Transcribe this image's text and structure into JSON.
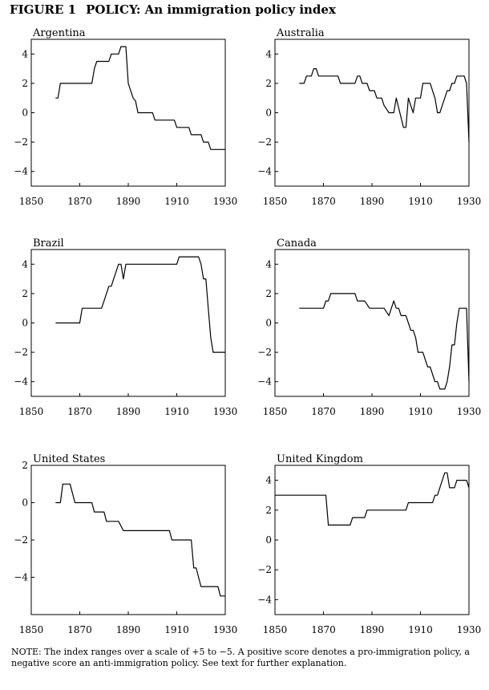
{
  "figure": {
    "number": "FIGURE 1",
    "title": "POLICY: An immigration policy index"
  },
  "note": "NOTE: The index ranges over a scale of +5 to −5. A positive score denotes a pro-immigration policy, a negative score an anti-immigration policy. See text for further explanation.",
  "chart_data": [
    {
      "type": "line",
      "title": "Argentina",
      "xlim": [
        1850,
        1930
      ],
      "ylim": [
        -5,
        5
      ],
      "xticks": [
        1850,
        1870,
        1890,
        1910,
        1930
      ],
      "yticks": [
        4,
        2,
        0,
        -2,
        -4
      ],
      "x": [
        1860,
        1861,
        1862,
        1875,
        1876,
        1877,
        1882,
        1883,
        1886,
        1887,
        1889,
        1890,
        1892,
        1893,
        1894,
        1900,
        1901,
        1909,
        1910,
        1915,
        1916,
        1920,
        1921,
        1923,
        1924,
        1930
      ],
      "y": [
        1,
        1,
        2,
        2,
        3,
        3.5,
        3.5,
        4,
        4,
        4.5,
        4.5,
        2,
        1,
        0.8,
        0,
        0,
        -0.5,
        -0.5,
        -1,
        -1,
        -1.5,
        -1.5,
        -2,
        -2,
        -2.5,
        -2.5
      ]
    },
    {
      "type": "line",
      "title": "Australia",
      "xlim": [
        1850,
        1930
      ],
      "ylim": [
        -5,
        5
      ],
      "xticks": [
        1850,
        1870,
        1890,
        1910,
        1930
      ],
      "yticks": [
        4,
        2,
        0,
        -2,
        -4
      ],
      "x": [
        1860,
        1862,
        1863,
        1865,
        1866,
        1867,
        1868,
        1876,
        1877,
        1883,
        1884,
        1885,
        1886,
        1888,
        1889,
        1891,
        1892,
        1894,
        1895,
        1897,
        1898,
        1899,
        1900,
        1903,
        1904,
        1905,
        1906,
        1907,
        1908,
        1910,
        1911,
        1913,
        1914,
        1916,
        1917,
        1918,
        1919,
        1920,
        1921,
        1922,
        1923,
        1924,
        1925,
        1928,
        1929,
        1930
      ],
      "y": [
        2,
        2,
        2.5,
        2.5,
        3,
        3,
        2.5,
        2.5,
        2,
        2,
        2.5,
        2.5,
        2,
        2,
        1.5,
        1.5,
        1,
        1,
        0.5,
        0,
        0,
        0,
        1,
        -1,
        -1,
        1,
        0.5,
        0,
        1,
        1,
        2,
        2,
        2,
        1,
        0,
        0,
        0.5,
        1,
        1.5,
        1.5,
        2,
        2,
        2.5,
        2.5,
        2,
        -2
      ]
    },
    {
      "type": "line",
      "title": "Brazil",
      "xlim": [
        1850,
        1930
      ],
      "ylim": [
        -5,
        5
      ],
      "xticks": [
        1850,
        1870,
        1890,
        1910,
        1930
      ],
      "yticks": [
        4,
        2,
        0,
        -2,
        -4
      ],
      "x": [
        1860,
        1870,
        1871,
        1879,
        1880,
        1881,
        1882,
        1883,
        1884,
        1885,
        1886,
        1887,
        1888,
        1889,
        1890,
        1910,
        1911,
        1919,
        1920,
        1921,
        1922,
        1923,
        1924,
        1925,
        1926,
        1930
      ],
      "y": [
        0,
        0,
        1,
        1,
        1.5,
        2,
        2.5,
        2.5,
        3,
        3.5,
        4,
        4,
        3,
        4,
        4,
        4,
        4.5,
        4.5,
        4,
        3,
        3,
        1,
        -1,
        -2,
        -2,
        -2
      ]
    },
    {
      "type": "line",
      "title": "Canada",
      "xlim": [
        1850,
        1930
      ],
      "ylim": [
        -5,
        5
      ],
      "xticks": [
        1850,
        1870,
        1890,
        1910,
        1930
      ],
      "yticks": [
        4,
        2,
        0,
        -2,
        -4
      ],
      "x": [
        1860,
        1870,
        1871,
        1872,
        1873,
        1874,
        1883,
        1884,
        1886,
        1887,
        1889,
        1890,
        1895,
        1897,
        1898,
        1899,
        1900,
        1901,
        1902,
        1903,
        1904,
        1905,
        1906,
        1907,
        1908,
        1909,
        1911,
        1912,
        1913,
        1914,
        1915,
        1916,
        1917,
        1918,
        1919,
        1920,
        1921,
        1922,
        1923,
        1924,
        1925,
        1926,
        1929,
        1930
      ],
      "y": [
        1,
        1,
        1.5,
        1.5,
        2,
        2,
        2,
        1.5,
        1.5,
        1.5,
        1,
        1,
        1,
        0.5,
        1,
        1.5,
        1,
        1,
        0.5,
        0.5,
        0.5,
        0,
        -0.5,
        -0.5,
        -1,
        -2,
        -2,
        -2.5,
        -3,
        -3,
        -3.5,
        -4,
        -4,
        -4.5,
        -4.5,
        -4.5,
        -4,
        -3,
        -1.5,
        -1.5,
        0,
        1,
        1,
        -4
      ]
    },
    {
      "type": "line",
      "title": "United States",
      "xlim": [
        1850,
        1930
      ],
      "ylim": [
        -6,
        2
      ],
      "xticks": [
        1850,
        1870,
        1890,
        1910,
        1930
      ],
      "yticks": [
        2,
        0,
        -2,
        -4
      ],
      "x": [
        1860,
        1862,
        1863,
        1865,
        1866,
        1868,
        1875,
        1876,
        1880,
        1881,
        1885,
        1886,
        1888,
        1907,
        1908,
        1916,
        1917,
        1918,
        1919,
        1920,
        1927,
        1928,
        1929,
        1930
      ],
      "y": [
        0,
        0,
        1,
        1,
        1,
        0,
        0,
        -0.5,
        -0.5,
        -1,
        -1,
        -1,
        -1.5,
        -1.5,
        -2,
        -2,
        -3.5,
        -3.5,
        -4,
        -4.5,
        -4.5,
        -5,
        -5,
        -5
      ]
    },
    {
      "type": "line",
      "title": "United Kingdom",
      "xlim": [
        1850,
        1930
      ],
      "ylim": [
        -5,
        5
      ],
      "xticks": [
        1850,
        1870,
        1890,
        1910,
        1930
      ],
      "yticks": [
        4,
        2,
        0,
        -2,
        -4
      ],
      "x": [
        1850,
        1871,
        1872,
        1880,
        1881,
        1882,
        1883,
        1884,
        1887,
        1888,
        1904,
        1905,
        1914,
        1915,
        1916,
        1917,
        1918,
        1919,
        1920,
        1921,
        1922,
        1923,
        1924,
        1925,
        1926,
        1928,
        1929,
        1930
      ],
      "y": [
        3,
        3,
        1,
        1,
        1,
        1.5,
        1.5,
        1.5,
        1.5,
        2,
        2,
        2.5,
        2.5,
        2.5,
        3,
        3,
        3.5,
        4,
        4.5,
        4.5,
        3.5,
        3.5,
        3.5,
        4,
        4,
        4,
        4,
        3.5
      ]
    }
  ]
}
